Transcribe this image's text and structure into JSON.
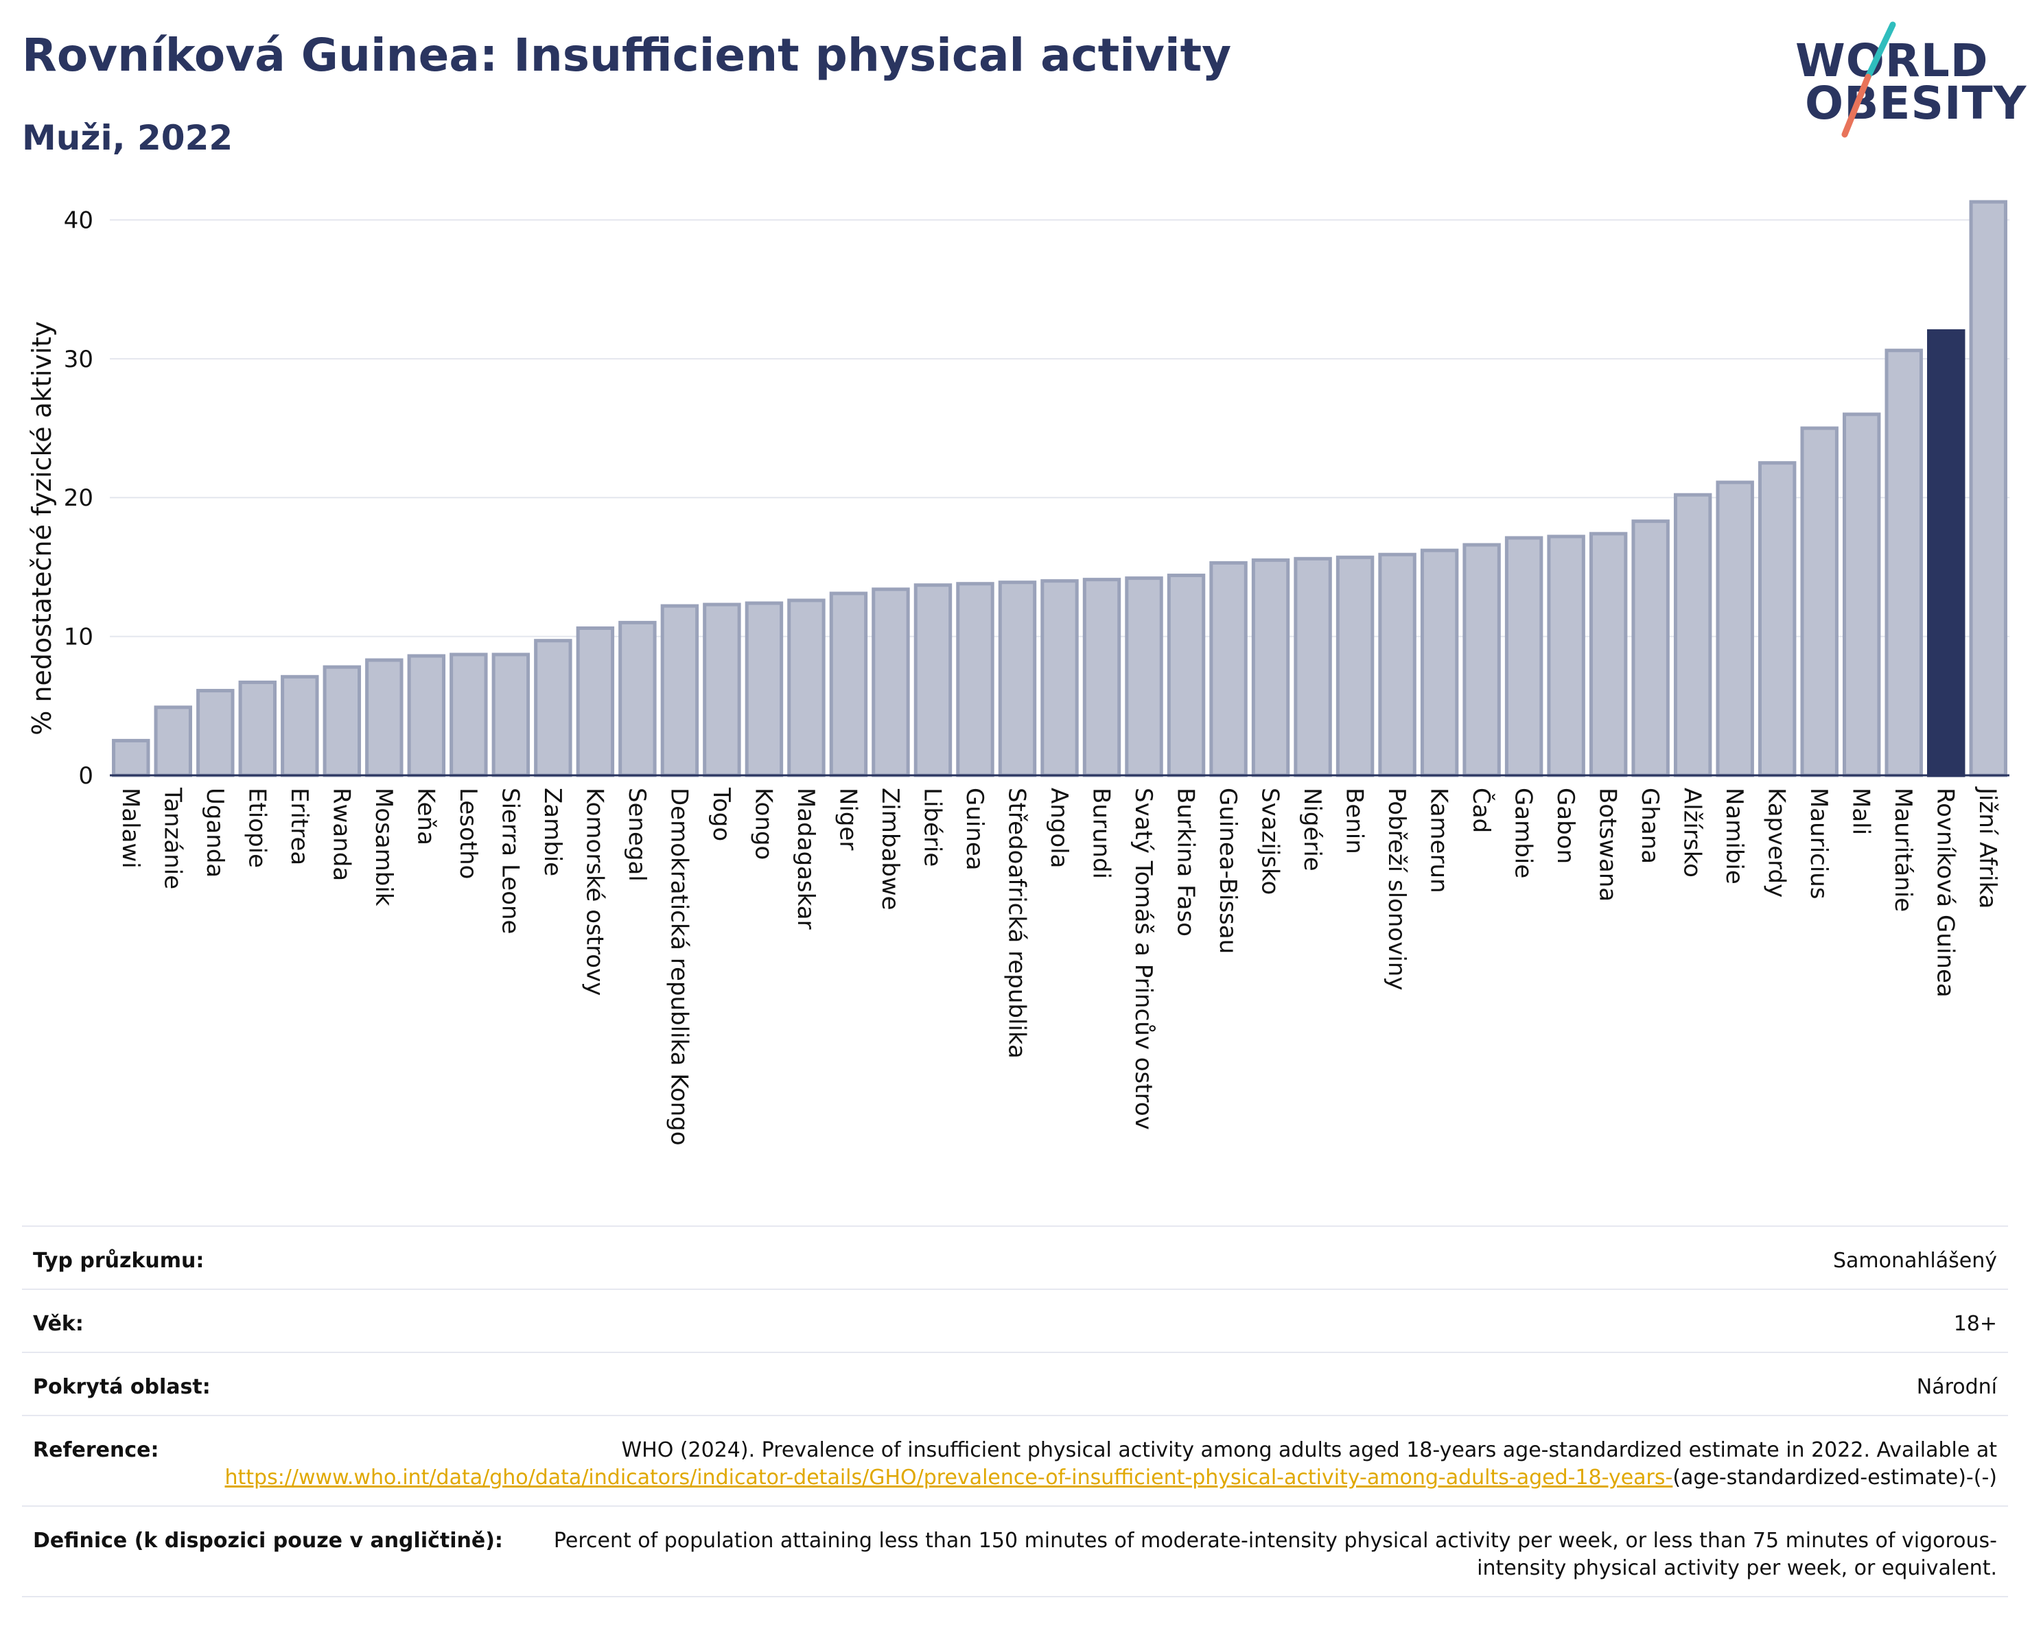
{
  "title": "Rovníková Guinea: Insufficient physical activity",
  "subtitle": "Muži, 2022",
  "logo": {
    "line1": "WORLD",
    "line2": "OBESITY"
  },
  "colors": {
    "highlight": "#2a3560",
    "bar": "#bcc1d1",
    "bar_edge": "#9aa2ba",
    "accent_teal": "#2fbdbd",
    "accent_coral": "#e8735a",
    "link": "#e0a800"
  },
  "chart_data": {
    "type": "bar",
    "ylabel": "% nedostatečné fyzické aktivity",
    "ylim": [
      0,
      42
    ],
    "yticks": [
      0,
      10,
      20,
      30,
      40
    ],
    "grid": true,
    "highlight": "Rovníková Guinea",
    "categories": [
      "Malawi",
      "Tanzánie",
      "Uganda",
      "Etiopie",
      "Eritrea",
      "Rwanda",
      "Mosambik",
      "Keňa",
      "Lesotho",
      "Sierra Leone",
      "Zambie",
      "Komorské ostrovy",
      "Senegal",
      "Demokratická republika Kongo",
      "Togo",
      "Kongo",
      "Madagaskar",
      "Niger",
      "Zimbabwe",
      "Libérie",
      "Guinea",
      "Středoafrická republika",
      "Angola",
      "Burundi",
      "Svatý Tomáš a Princův ostrov",
      "Burkina Faso",
      "Guinea-Bissau",
      "Svazijsko",
      "Nigérie",
      "Benin",
      "Pobřeží slonoviny",
      "Kamerun",
      "Čad",
      "Gambie",
      "Gabon",
      "Botswana",
      "Ghana",
      "Alžírsko",
      "Namibie",
      "Kapverdy",
      "Mauricius",
      "Mali",
      "Mauritánie",
      "Rovníková Guinea",
      "Jižní Afrika"
    ],
    "values": [
      2.5,
      4.9,
      6.1,
      6.7,
      7.1,
      7.8,
      8.3,
      8.6,
      8.7,
      8.7,
      9.7,
      10.6,
      11.0,
      12.2,
      12.3,
      12.4,
      12.6,
      13.1,
      13.4,
      13.7,
      13.8,
      13.9,
      14.0,
      14.1,
      14.2,
      14.4,
      15.3,
      15.5,
      15.6,
      15.7,
      15.9,
      16.2,
      16.6,
      17.1,
      17.2,
      17.4,
      18.3,
      20.2,
      21.1,
      22.5,
      25.0,
      26.0,
      30.6,
      32.0,
      41.3
    ]
  },
  "info": {
    "survey_type": {
      "label": "Typ průzkumu:",
      "value": "Samonahlášený"
    },
    "age": {
      "label": "Věk:",
      "value": "18+"
    },
    "coverage": {
      "label": "Pokrytá oblast:",
      "value": "Národní"
    },
    "reference": {
      "label": "Reference:",
      "text": "WHO (2024). Prevalence of insufficient physical activity among adults aged 18-years age-standardized estimate in 2022. Available at",
      "link": "https://www.who.int/data/gho/data/indicators/indicator-details/GHO/prevalence-of-insufficient-physical-activity-among-adults-aged-18-years-",
      "suffix": "(age-standardized-estimate)-(-)"
    },
    "definition": {
      "label": "Definice (k dispozici pouze v angličtině):",
      "value": "Percent of population attaining less than 150 minutes of moderate-intensity physical activity per week, or less than 75 minutes of vigorous-intensity physical activity per week, or equivalent."
    }
  }
}
